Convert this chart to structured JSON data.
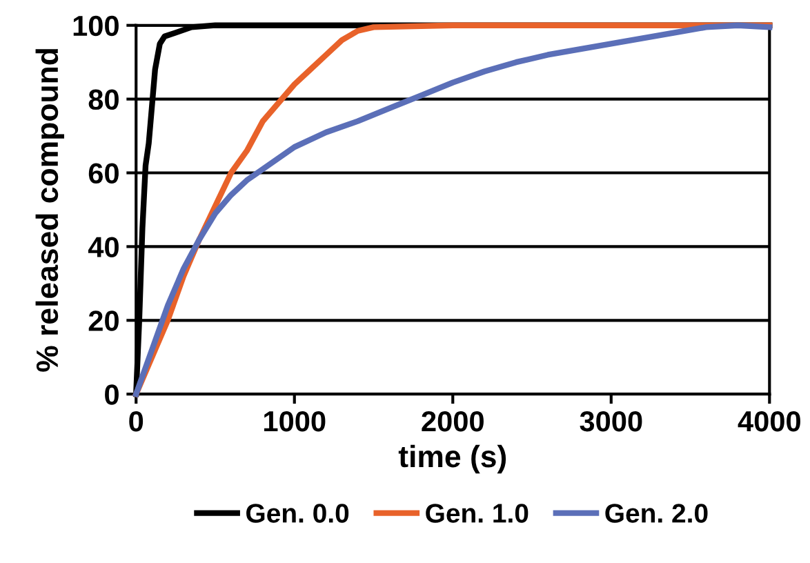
{
  "chart_data": {
    "type": "line",
    "xlabel": "time (s)",
    "ylabel": "% released compound",
    "xlim": [
      0,
      4000
    ],
    "xticks": [
      0,
      1000,
      2000,
      3000,
      4000
    ],
    "ylim": [
      0,
      100
    ],
    "yticks": [
      0,
      20,
      40,
      60,
      80,
      100
    ],
    "grid": "y",
    "legend": "bottom",
    "marker": "none",
    "line_style": "solid",
    "series": [
      {
        "name": "Gen. 0.0",
        "color": "#000000",
        "x": [
          0,
          20,
          40,
          60,
          80,
          100,
          120,
          150,
          180,
          250,
          350,
          500,
          1600,
          1750,
          1900,
          2100,
          4000
        ],
        "values": [
          0,
          20,
          45,
          62,
          68,
          78,
          88,
          95,
          97,
          98,
          99.5,
          100,
          100,
          100,
          100,
          100,
          100
        ]
      },
      {
        "name": "Gen. 1.0",
        "color": "#e8622a",
        "x": [
          0,
          100,
          200,
          300,
          400,
          500,
          600,
          700,
          800,
          900,
          1000,
          1100,
          1200,
          1300,
          1400,
          1500,
          2000,
          4000
        ],
        "values": [
          0,
          10,
          20,
          32,
          42,
          51,
          60,
          66,
          74,
          79,
          84,
          88,
          92,
          96,
          98.5,
          99.5,
          100,
          100
        ]
      },
      {
        "name": "Gen. 2.0",
        "color": "#5b6fb8",
        "x": [
          0,
          100,
          200,
          300,
          400,
          500,
          600,
          700,
          800,
          1000,
          1200,
          1400,
          1600,
          1800,
          2000,
          2200,
          2400,
          2600,
          2800,
          3000,
          3200,
          3400,
          3600,
          3800,
          4000
        ],
        "values": [
          0,
          12,
          24,
          34,
          42,
          49,
          54,
          58,
          61,
          67,
          71,
          74,
          77.5,
          81,
          84.5,
          87.5,
          90,
          92,
          93.5,
          95,
          96.5,
          98,
          99.5,
          100,
          99.5
        ]
      }
    ]
  }
}
